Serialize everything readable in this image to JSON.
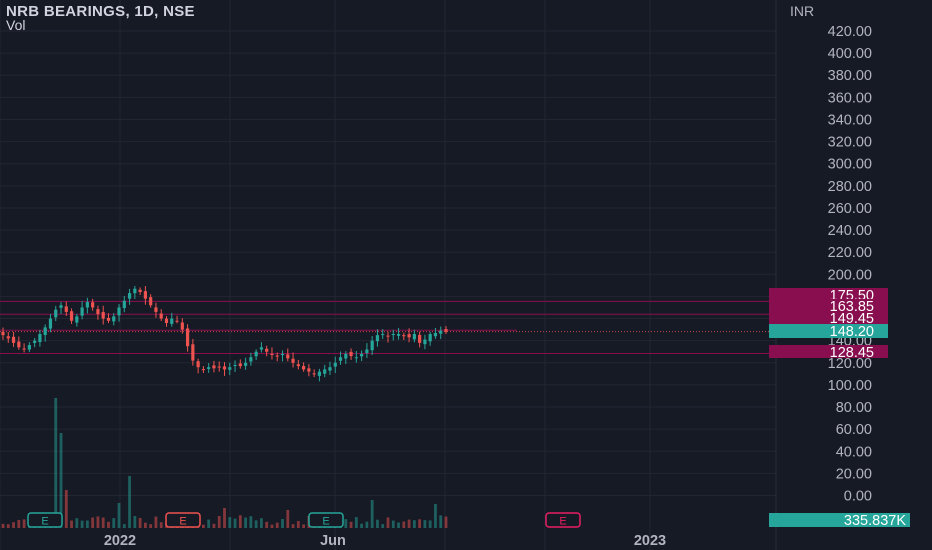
{
  "header": {
    "title": "NRB BEARINGS, 1D, NSE",
    "volume_label": "Vol"
  },
  "axis": {
    "currency": "INR"
  },
  "chart_data": {
    "type": "candlestick",
    "title": "NRB BEARINGS, 1D, NSE",
    "y_ticks": [
      "0.00",
      "20.00",
      "40.00",
      "60.00",
      "80.00",
      "100.00",
      "120.00",
      "140.00",
      "160.00",
      "180.00",
      "200.00",
      "220.00",
      "240.00",
      "260.00",
      "280.00",
      "300.00",
      "320.00",
      "340.00",
      "360.00",
      "380.00",
      "400.00",
      "420.00"
    ],
    "ylim": [
      0,
      428
    ],
    "x_ticks": [
      "2022",
      "Jun",
      "2023"
    ],
    "grid": true,
    "price_levels": [
      {
        "label": "175.50",
        "value": 175.5,
        "color": "#880e4f"
      },
      {
        "label": "163.85",
        "value": 163.85,
        "color": "#880e4f"
      },
      {
        "label": "149.45",
        "value": 149.45,
        "color": "#880e4f"
      },
      {
        "label": "128.45",
        "value": 128.45,
        "color": "#880e4f"
      }
    ],
    "last_price": {
      "label": "148.20",
      "value": 148.2,
      "color": "#26a69a"
    },
    "volume_label": {
      "label": "335.837K",
      "color": "#26a69a"
    },
    "earnings_markers": [
      {
        "label": "E",
        "color": "#26a69a"
      },
      {
        "label": "E",
        "color": "#ef5350"
      },
      {
        "label": "E",
        "color": "#26a69a"
      },
      {
        "label": "E",
        "color": "#e91e63"
      }
    ],
    "series": [
      {
        "close": [
          145,
          142,
          138,
          134,
          132,
          136,
          140,
          146,
          152,
          160,
          168,
          172,
          166,
          158,
          162,
          170,
          175,
          170,
          164,
          160,
          158,
          162,
          170,
          176,
          183,
          187,
          184,
          178,
          172,
          166,
          160,
          156,
          160,
          158,
          150,
          135,
          122,
          116,
          114,
          116,
          115,
          116,
          114,
          116,
          118,
          117,
          120,
          125,
          130,
          134,
          130,
          127,
          126,
          128,
          124,
          120,
          117,
          114,
          112,
          110,
          112,
          114,
          116,
          120,
          125,
          128,
          126,
          125,
          128,
          132,
          140,
          145,
          146,
          144,
          146,
          146,
          144,
          143,
          146,
          138,
          141,
          146,
          147,
          149,
          148
        ]
      }
    ]
  }
}
